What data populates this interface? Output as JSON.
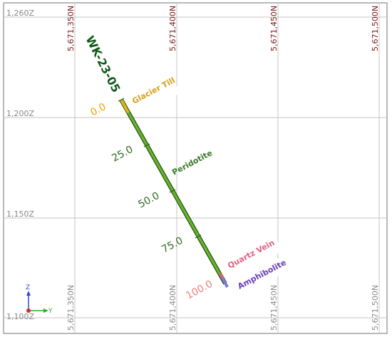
{
  "elevation_labels": [
    "1,260Z",
    "1,200Z",
    "1,150Z",
    "1,100Z"
  ],
  "northing_labels": [
    "5,671,350N",
    "5,671,400N",
    "5,671,450N",
    "5,671,500N"
  ],
  "drillhole": {
    "name": "WK-23-05",
    "depth_labels": [
      "0.0",
      "25.0",
      "50.0",
      "75.0",
      "100.0"
    ],
    "lithology": [
      {
        "name": "Glacier Till",
        "color": "#d4a017"
      },
      {
        "name": "Peridotite",
        "color": "#3b8a2e"
      },
      {
        "name": "Quartz Vein",
        "color": "#e06080"
      },
      {
        "name": "Amphibolite",
        "color": "#6a3fb8"
      }
    ],
    "trace_color": "#5ea82e"
  },
  "axis_triad": {
    "vertical": "Z",
    "horizontal": "Y"
  }
}
